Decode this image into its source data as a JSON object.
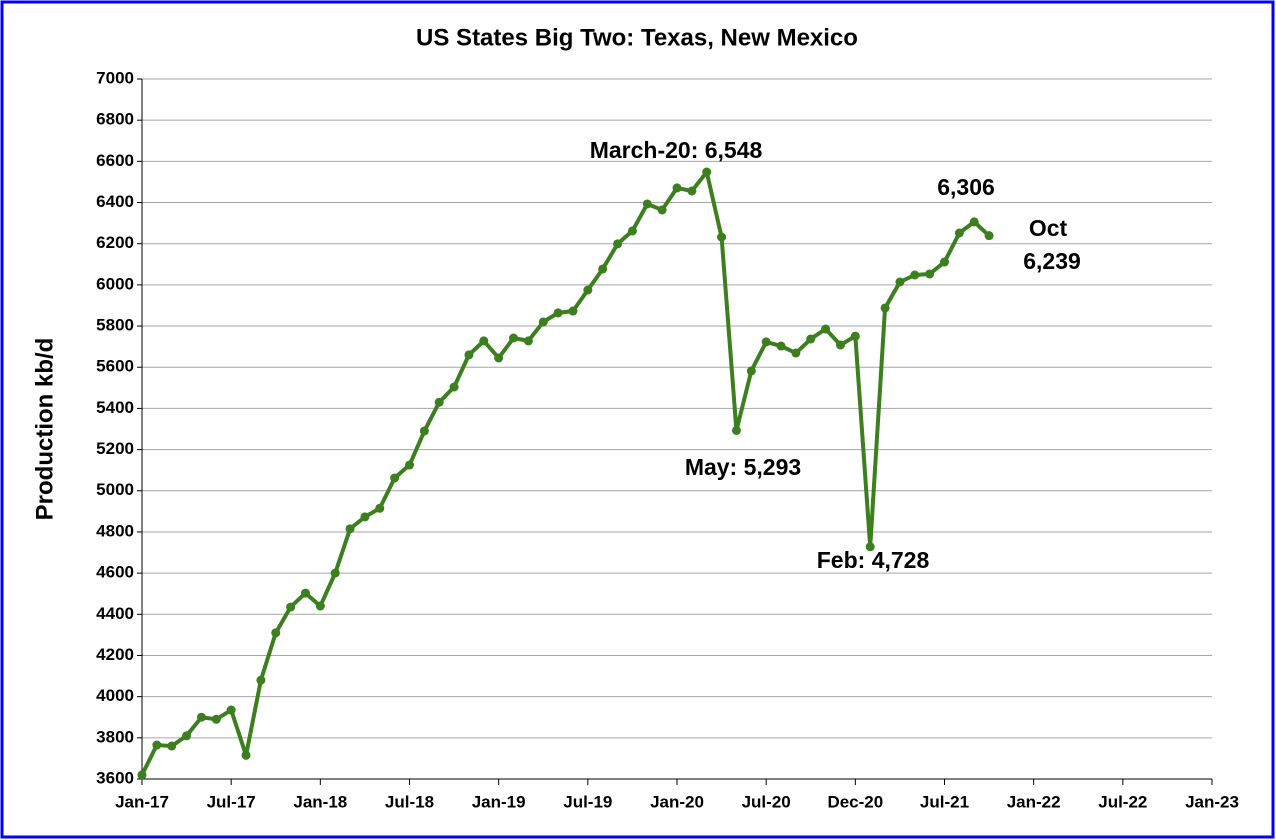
{
  "chart_data": {
    "type": "line",
    "title": "US States Big Two: Texas, New Mexico",
    "y_label": "Production kb/d",
    "x": [
      "Jan-17",
      "Feb-17",
      "Mar-17",
      "Apr-17",
      "May-17",
      "Jun-17",
      "Jul-17",
      "Aug-17",
      "Sep-17",
      "Oct-17",
      "Nov-17",
      "Dec-17",
      "Jan-18",
      "Feb-18",
      "Mar-18",
      "Apr-18",
      "May-18",
      "Jun-18",
      "Jul-18",
      "Aug-18",
      "Sep-18",
      "Oct-18",
      "Nov-18",
      "Dec-18",
      "Jan-19",
      "Feb-19",
      "Mar-19",
      "Apr-19",
      "May-19",
      "Jun-19",
      "Jul-19",
      "Aug-19",
      "Sep-19",
      "Oct-19",
      "Nov-19",
      "Dec-19",
      "Jan-20",
      "Feb-20",
      "Mar-20",
      "Apr-20",
      "May-20",
      "Jun-20",
      "Jul-20",
      "Aug-20",
      "Sep-20",
      "Oct-20",
      "Nov-20",
      "Dec-20",
      "Jan-21",
      "Feb-21",
      "Mar-21",
      "Apr-21",
      "May-21",
      "Jun-21",
      "Jul-21",
      "Aug-21",
      "Sep-21",
      "Oct-21"
    ],
    "series": [
      {
        "name": "Texas + New Mexico",
        "color": "#3c7f1f",
        "values": [
          3620,
          3765,
          3760,
          3810,
          3900,
          3890,
          3935,
          3715,
          4080,
          4310,
          4435,
          4503,
          4440,
          4600,
          4815,
          4873,
          4915,
          5062,
          5125,
          5290,
          5430,
          5504,
          5660,
          5728,
          5645,
          5742,
          5728,
          5820,
          5864,
          5873,
          5975,
          6077,
          6199,
          6262,
          6393,
          6364,
          6471,
          6456,
          6548,
          6232,
          5293,
          5582,
          5723,
          5703,
          5669,
          5737,
          5786,
          5708,
          5751,
          4728,
          5888,
          6014,
          6048,
          6053,
          6111,
          6252,
          6306,
          6239
        ]
      }
    ],
    "xlim": [
      "Jan-17",
      "Jan-23"
    ],
    "xticks": [
      "Jan-17",
      "Jul-17",
      "Jan-18",
      "Jul-18",
      "Jan-19",
      "Jul-19",
      "Jan-20",
      "Jul-20",
      "Dec-20",
      "Jul-21",
      "Jan-22",
      "Jul-22",
      "Jan-23"
    ],
    "ylim": [
      3600,
      7000
    ],
    "yticks": [
      3600,
      3800,
      4000,
      4200,
      4400,
      4600,
      4800,
      5000,
      5200,
      5400,
      5600,
      5800,
      6000,
      6200,
      6400,
      6600,
      6800,
      7000
    ],
    "grid": true,
    "annotations": [
      "March-20: 6,548",
      "6,306",
      "Oct",
      "6,239",
      "May: 5,293",
      "Feb: 4,728"
    ]
  }
}
